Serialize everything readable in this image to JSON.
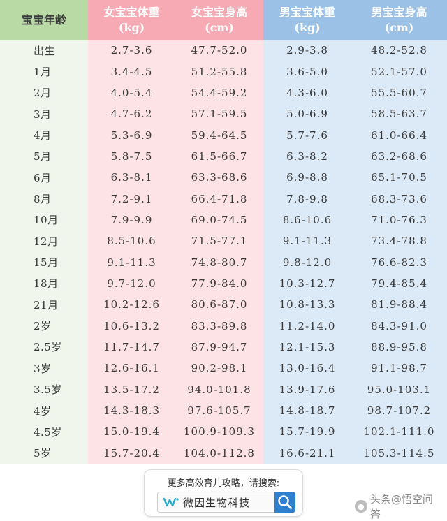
{
  "headers": {
    "age": "宝宝年龄",
    "girl_weight": [
      "女宝宝体重",
      "(kg)"
    ],
    "girl_height": [
      "女宝宝身高",
      "(cm)"
    ],
    "boy_weight": [
      "男宝宝体重",
      "(kg)"
    ],
    "boy_height": [
      "男宝宝身高",
      "(cm)"
    ]
  },
  "rows": [
    [
      "出生",
      "2.7-3.6",
      "47.7-52.0",
      "2.9-3.8",
      "48.2-52.8"
    ],
    [
      "1月",
      "3.4-4.5",
      "51.2-55.8",
      "3.6-5.0",
      "52.1-57.0"
    ],
    [
      "2月",
      "4.0-5.4",
      "54.4-59.2",
      "4.3-6.0",
      "55.5-60.7"
    ],
    [
      "3月",
      "4.7-6.2",
      "57.1-59.5",
      "5.0-6.9",
      "58.5-63.7"
    ],
    [
      "4月",
      "5.3-6.9",
      "59.4-64.5",
      "5.7-7.6",
      "61.0-66.4"
    ],
    [
      "5月",
      "5.8-7.5",
      "61.5-66.7",
      "6.3-8.2",
      "63.2-68.6"
    ],
    [
      "6月",
      "6.3-8.1",
      "63.3-68.6",
      "6.9-8.8",
      "65.1-70.5"
    ],
    [
      "8月",
      "7.2-9.1",
      "66.4-71.8",
      "7.8-9.8",
      "68.3-73.6"
    ],
    [
      "10月",
      "7.9-9.9",
      "69.0-74.5",
      "8.6-10.6",
      "71.0-76.3"
    ],
    [
      "12月",
      "8.5-10.6",
      "71.5-77.1",
      "9.1-11.3",
      "73.4-78.8"
    ],
    [
      "15月",
      "9.1-11.3",
      "74.8-80.7",
      "9.8-12.0",
      "76.6-82.3"
    ],
    [
      "18月",
      "9.7-12.0",
      "77.9-84.0",
      "10.3-12.7",
      "79.4-85.4"
    ],
    [
      "21月",
      "10.2-12.6",
      "80.6-87.0",
      "10.8-13.3",
      "81.9-88.4"
    ],
    [
      "2岁",
      "10.6-13.2",
      "83.3-89.8",
      "11.2-14.0",
      "84.3-91.0"
    ],
    [
      "2.5岁",
      "11.7-14.7",
      "87.9-94.7",
      "12.1-15.3",
      "88.9-95.8"
    ],
    [
      "3岁",
      "12.6-16.1",
      "90.2-98.1",
      "13.0-16.4",
      "91.1-98.7"
    ],
    [
      "3.5岁",
      "13.5-17.2",
      "94.0-101.8",
      "13.9-17.6",
      "95.0-103.1"
    ],
    [
      "4岁",
      "14.3-18.3",
      "97.6-105.7",
      "14.8-18.7",
      "98.7-107.2"
    ],
    [
      "4.5岁",
      "15.0-19.4",
      "100.9-109.3",
      "15.7-19.9",
      "102.1-111.0"
    ],
    [
      "5岁",
      "15.7-20.4",
      "104.0-112.8",
      "16.6-21.1",
      "105.3-114.5"
    ]
  ],
  "promo": {
    "title": "更多高效育儿攻略，请搜索:",
    "brand": "微因生物科技",
    "brand_icon": "wave-logo-icon",
    "search_icon": "magnifier-icon"
  },
  "watermark": {
    "text": "头条@悟空问答",
    "icon": "wukong-icon"
  },
  "colors": {
    "age_header": "#b9d9a5",
    "girl_header": "#f7aab4",
    "boy_header": "#9bc1e6",
    "age_cell": "#f0f6ec",
    "girl_cell": "#fde3e6",
    "boy_cell": "#dce9f6"
  }
}
